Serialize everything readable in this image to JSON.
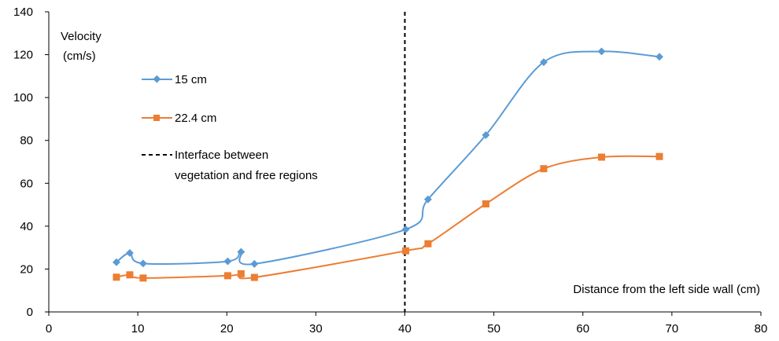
{
  "chart_data": {
    "type": "line",
    "title": "",
    "ylabel": [
      "Velocity",
      "(cm/s)"
    ],
    "xlabel": "Distance from the  left side wall (cm)",
    "xlim": [
      0,
      80
    ],
    "ylim": [
      0,
      140
    ],
    "xticks": [
      "0",
      "10",
      "20",
      "30",
      "40",
      "50",
      "60",
      "70",
      "80"
    ],
    "yticks": [
      "0",
      "20",
      "40",
      "60",
      "80",
      "100",
      "120",
      "140"
    ],
    "grid": false,
    "legend_position": "top-left",
    "series": [
      {
        "name": "15 cm",
        "color": "#5b9bd5",
        "marker": "diamond",
        "x": [
          7.6,
          9.1,
          10.6,
          20.1,
          21.6,
          23.1,
          40.1,
          42.6,
          49.1,
          55.6,
          62.1,
          68.6
        ],
        "y": [
          23.2,
          27.5,
          22.6,
          23.6,
          28,
          22.4,
          38.5,
          52.5,
          82.5,
          116.5,
          121.5,
          119
        ]
      },
      {
        "name": "22.4 cm",
        "color": "#ed7d31",
        "marker": "square",
        "x": [
          7.6,
          9.1,
          10.6,
          20.1,
          21.6,
          23.1,
          40.1,
          42.6,
          49.1,
          55.6,
          62.1,
          68.6
        ],
        "y": [
          16.2,
          17.3,
          15.8,
          16.9,
          17.8,
          16.1,
          28.5,
          31.8,
          50.4,
          66.8,
          72.2,
          72.5
        ]
      }
    ],
    "reference_line": {
      "x": 40,
      "style": "dashed",
      "color": "#000000",
      "label": [
        "Interface between",
        "vegetation and free regions"
      ]
    }
  }
}
